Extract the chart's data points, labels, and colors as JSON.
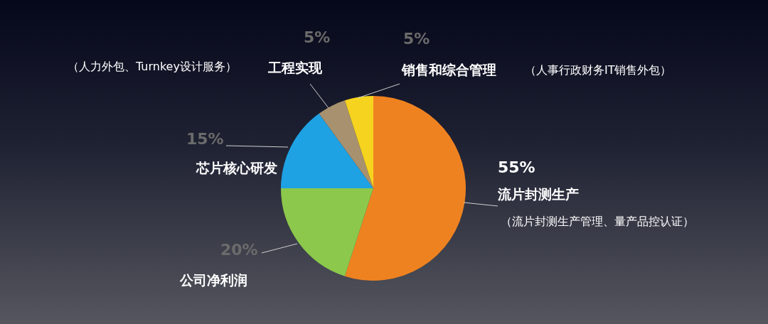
{
  "chart_data": {
    "type": "pie",
    "categories": [
      "流片封测生产",
      "公司净利润",
      "芯片核心研发",
      "工程实现",
      "销售和综合管理"
    ],
    "values": [
      55,
      20,
      15,
      5,
      5
    ],
    "colors": [
      "#ef8220",
      "#8cc84b",
      "#1ea2e4",
      "#a8916f",
      "#f5d31f"
    ],
    "value_labels": [
      "55%",
      "20%",
      "15%",
      "5%",
      "5%"
    ],
    "annotations": [
      "（流片封测生产管理、量产品控认证）",
      "（人力外包、Turnkey设计服务）",
      "（人事行政财务IT销售外包）"
    ],
    "legend": false
  }
}
